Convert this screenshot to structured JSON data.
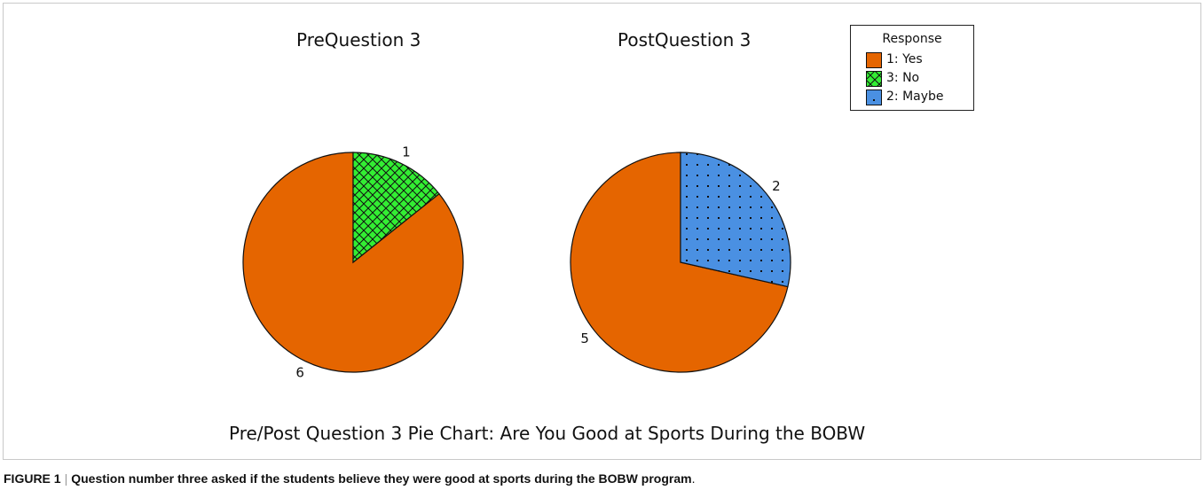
{
  "figure_label": "FIGURE 1",
  "figure_caption": "Question number three asked if the students believe they were good at sports during the BOBW program",
  "figure_caption_end": ".",
  "chart_data": {
    "type": "pie",
    "title": "Pre/Post Question 3 Pie Chart: Are You Good at Sports During the BOBW",
    "legend": {
      "title": "Response",
      "placement": "top-right",
      "entries": [
        {
          "label": "1: Yes",
          "color": "#e56500",
          "pattern": "solid"
        },
        {
          "label": "3: No",
          "color": "#33ee33",
          "pattern": "crosshatch"
        },
        {
          "label": "2: Maybe",
          "color": "#4a90e2",
          "pattern": "dots"
        }
      ]
    },
    "pies": [
      {
        "title": "PreQuestion 3",
        "slices": [
          {
            "category": "1: Yes",
            "value": 6
          },
          {
            "category": "3: No",
            "value": 1
          }
        ]
      },
      {
        "title": "PostQuestion 3",
        "slices": [
          {
            "category": "1: Yes",
            "value": 5
          },
          {
            "category": "2: Maybe",
            "value": 2
          }
        ]
      }
    ]
  }
}
